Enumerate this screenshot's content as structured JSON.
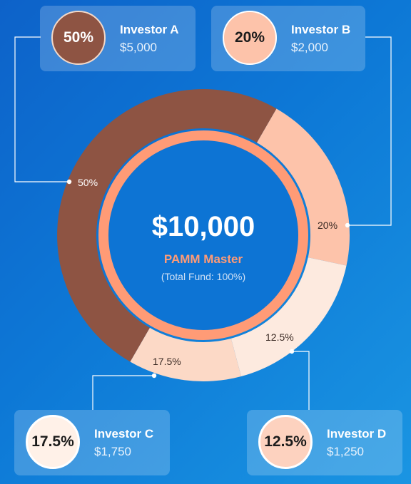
{
  "center": {
    "amount": "$10,000",
    "title": "PAMM Master",
    "subtitle": "(Total Fund: 100%)"
  },
  "investors": [
    {
      "name": "Investor A",
      "amount": "$5,000",
      "percent_label": "50%",
      "segment_label": "50%",
      "percent": 50
    },
    {
      "name": "Investor B",
      "amount": "$2,000",
      "percent_label": "20%",
      "segment_label": "20%",
      "percent": 20
    },
    {
      "name": "Investor C",
      "amount": "$1,750",
      "percent_label": "17.5%",
      "segment_label": "17.5%",
      "percent": 17.5
    },
    {
      "name": "Investor D",
      "amount": "$1,250",
      "percent_label": "12.5%",
      "segment_label": "12.5%",
      "percent": 12.5
    }
  ],
  "colors": {
    "investor_a": "#8e5443",
    "investor_b": "#fdc3aa",
    "investor_c": "#fdeadf",
    "investor_d": "#fcd9c6",
    "inner_ring": "#ff9b76",
    "inner_fill": "#0d74d4",
    "connector": "#ffffff",
    "background": "#0d70d2"
  }
}
